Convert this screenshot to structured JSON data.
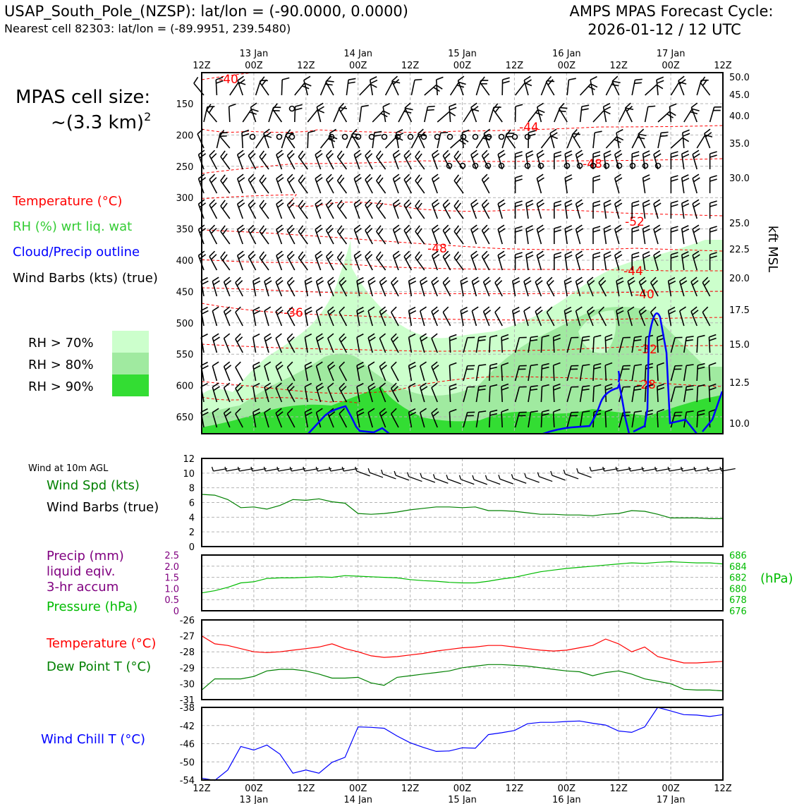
{
  "header": {
    "station_line": "USAP_South_Pole_(NZSP): lat/lon = (-90.0000, 0.0000)",
    "nearest_line": "Nearest cell 82303: lat/lon = (-89.9951, 239.5480)",
    "cycle_line1": "AMPS MPAS Forecast Cycle:",
    "cycle_line2": "2026-01-12 / 12 UTC"
  },
  "sidebar": {
    "cell_size_label": "MPAS cell size:",
    "cell_size_value": "~(3.3 km)",
    "cell_size_exp": "2",
    "legend_temperature": "Temperature (°C)",
    "legend_rh": "RH (%) wrt liq. wat",
    "legend_cloud": "Cloud/Precip outline",
    "legend_wind": "Wind Barbs (kts) (true)",
    "rh_70": "RH > 70%",
    "rh_80": "RH > 80%",
    "rh_90": "RH > 90%",
    "wind10_title": "Wind at 10m AGL",
    "wind_spd": "Wind Spd (kts)",
    "wind_barbs": "Wind Barbs (true)",
    "precip1": "Precip (mm)",
    "precip2": "liquid eqiv.",
    "precip3": "3-hr accum",
    "pressure": "Pressure (hPa)",
    "hpa_unit": "(hPa)",
    "temperature": "Temperature (°C)",
    "dewpoint": "Dew Point T (°C)",
    "windchill": "Wind Chill T (°C)"
  },
  "colors": {
    "temperature": "#ff0000",
    "rh_label": "#33cc33",
    "cloud": "#0000ff",
    "rh70": "#ccffcc",
    "rh80": "#a0eaa0",
    "rh90": "#33dd33",
    "wind_speed": "#008000",
    "precip": "#800080",
    "pressure": "#00bb00",
    "dewpoint": "#008000",
    "windchill": "#0000ff"
  },
  "time_axis": {
    "ticks": [
      "12Z",
      "00Z",
      "12Z",
      "00Z",
      "12Z",
      "00Z",
      "12Z",
      "00Z",
      "12Z",
      "00Z",
      "12Z"
    ],
    "dates": [
      "13 Jan",
      "14 Jan",
      "15 Jan",
      "16 Jan",
      "17 Jan"
    ]
  },
  "chart_data": [
    {
      "id": "cross_section",
      "type": "contour",
      "y_left_ticks": [
        150,
        200,
        250,
        300,
        350,
        400,
        450,
        500,
        550,
        600,
        650
      ],
      "y_right_label": "kft MSL",
      "y_right_ticks": [
        "50.0",
        "45.0",
        "40.0",
        "35.0",
        "30.0",
        "25.0",
        "22.5",
        "20.0",
        "17.5",
        "15.0",
        "12.5",
        "10.0"
      ],
      "temperature_labels": [
        "-40",
        "-44",
        "-48",
        "-52",
        "-48",
        "-44",
        "-40",
        "-36",
        "-32",
        "-28"
      ]
    },
    {
      "id": "wind10m",
      "type": "line",
      "series": [
        {
          "name": "Wind Spd (kts)",
          "values": [
            7.1,
            7.0,
            6.4,
            5.3,
            5.4,
            5.1,
            5.6,
            6.4,
            6.3,
            6.5,
            6.1,
            5.9,
            4.5,
            4.4,
            4.5,
            4.7,
            5.0,
            5.2,
            5.4,
            5.4,
            5.3,
            5.4,
            4.9,
            4.9,
            4.8,
            4.6,
            4.4,
            4.4,
            4.3,
            4.3,
            4.2,
            4.4,
            4.5,
            4.9,
            4.8,
            4.4,
            3.9,
            3.9,
            3.9,
            3.8,
            3.8
          ]
        }
      ],
      "ylim": [
        0,
        12
      ],
      "y_ticks": [
        0,
        2,
        4,
        6,
        8,
        10,
        12
      ]
    },
    {
      "id": "precip_pressure",
      "type": "line",
      "precip_ticks": [
        "0",
        "0.5",
        "1.0",
        "1.5",
        "2.0",
        "2.5"
      ],
      "pressure_ticks": [
        "676",
        "678",
        "680",
        "682",
        "684",
        "686"
      ],
      "pressure_ylim": [
        676,
        686
      ],
      "series": [
        {
          "name": "Pressure (hPa)",
          "values": [
            679.2,
            679.6,
            680.2,
            681.0,
            681.2,
            681.8,
            681.9,
            681.9,
            682.0,
            682.1,
            682.0,
            682.3,
            682.2,
            682.1,
            682.0,
            681.9,
            681.6,
            681.4,
            681.3,
            681.1,
            681.0,
            681.0,
            681.3,
            681.7,
            682.0,
            682.5,
            683.0,
            683.3,
            683.6,
            683.8,
            684.0,
            684.2,
            684.4,
            684.6,
            684.5,
            684.7,
            684.8,
            684.7,
            684.6,
            684.6,
            684.4
          ]
        }
      ]
    },
    {
      "id": "temp_dew",
      "type": "line",
      "ylim": [
        -31,
        -26
      ],
      "y_ticks": [
        -31,
        -30,
        -29,
        -28,
        -27,
        -26
      ],
      "series": [
        {
          "name": "Temperature (°C)",
          "values": [
            -27.0,
            -27.5,
            -27.6,
            -27.8,
            -28.0,
            -28.05,
            -28.0,
            -27.9,
            -27.8,
            -27.7,
            -27.5,
            -27.8,
            -28.0,
            -28.25,
            -28.35,
            -28.3,
            -28.2,
            -28.1,
            -27.95,
            -27.85,
            -27.75,
            -27.7,
            -27.6,
            -27.6,
            -27.7,
            -27.8,
            -27.9,
            -27.95,
            -27.9,
            -27.75,
            -27.6,
            -27.2,
            -27.5,
            -28.0,
            -27.7,
            -28.3,
            -28.5,
            -28.7,
            -28.7,
            -28.65,
            -28.6
          ]
        },
        {
          "name": "Dew Point T (°C)",
          "values": [
            -30.4,
            -29.7,
            -29.7,
            -29.7,
            -29.55,
            -29.2,
            -29.1,
            -29.1,
            -29.2,
            -29.4,
            -29.65,
            -29.65,
            -29.6,
            -29.95,
            -30.1,
            -29.6,
            -29.5,
            -29.4,
            -29.3,
            -29.2,
            -29.0,
            -28.9,
            -28.8,
            -28.8,
            -28.85,
            -28.9,
            -29.0,
            -29.1,
            -29.2,
            -29.25,
            -29.5,
            -29.3,
            -29.2,
            -29.4,
            -29.7,
            -29.85,
            -30.0,
            -30.35,
            -30.4,
            -30.4,
            -30.45
          ]
        }
      ]
    },
    {
      "id": "wind_chill",
      "type": "line",
      "ylim": [
        -54,
        -38
      ],
      "y_ticks": [
        -54,
        -50,
        -46,
        -42,
        -38
      ],
      "series": [
        {
          "name": "Wind Chill T (°C)",
          "values": [
            -53.6,
            -54.1,
            -51.8,
            -46.6,
            -47.4,
            -46.3,
            -48.3,
            -52.5,
            -51.8,
            -52.5,
            -50.1,
            -49.0,
            -42.3,
            -42.4,
            -42.6,
            -44.3,
            -45.8,
            -46.8,
            -47.7,
            -47.6,
            -46.9,
            -47.0,
            -44.0,
            -43.6,
            -43.1,
            -41.6,
            -41.3,
            -41.3,
            -41.1,
            -41.0,
            -41.5,
            -41.9,
            -43.2,
            -43.5,
            -42.3,
            -38.0,
            -38.8,
            -39.6,
            -39.7,
            -40.0,
            -39.6
          ]
        }
      ]
    }
  ]
}
